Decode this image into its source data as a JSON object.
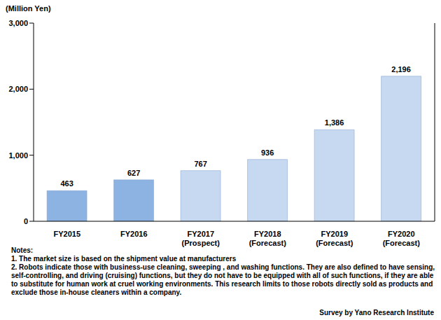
{
  "chart_data": {
    "type": "bar",
    "y_label": "(Million Yen)",
    "categories": [
      "FY2015",
      "FY2016",
      "FY2017 (Prospect)",
      "FY2018 (Forecast)",
      "FY2019 (Forecast)",
      "FY2020 (Forecast)"
    ],
    "values": [
      463,
      627,
      767,
      936,
      1386,
      2196
    ],
    "value_labels": [
      "463",
      "627",
      "767",
      "936",
      "1,386",
      "2,196"
    ],
    "colors": [
      "#8db3e2",
      "#8db3e2",
      "#c6d9f1",
      "#c6d9f1",
      "#c6d9f1",
      "#c6d9f1"
    ],
    "ylim": [
      0,
      3000
    ],
    "yticks": [
      0,
      {
        "value": 1000,
        "label": "1,000"
      },
      {
        "value": 2000,
        "label": "2,000"
      },
      {
        "value": 3000,
        "label": "3,000"
      }
    ],
    "grid": false,
    "data_labels": true,
    "annotations": [
      "Notes:",
      "1. The market size is based on the shipment value at manufacturers",
      "2. Robots indicate those with business-use cleaning, sweeping , and washing functions.  They are also defined to have sensing, self-controlling, and driving (cruising) functions, but they do not have to be equipped with all of such functions, if they are able to substitute for human work at cruel working environments.  This research limits to those robots directly sold as products and exclude those in-house cleaners within a company."
    ],
    "source": "Survey by Yano Research Institute"
  }
}
